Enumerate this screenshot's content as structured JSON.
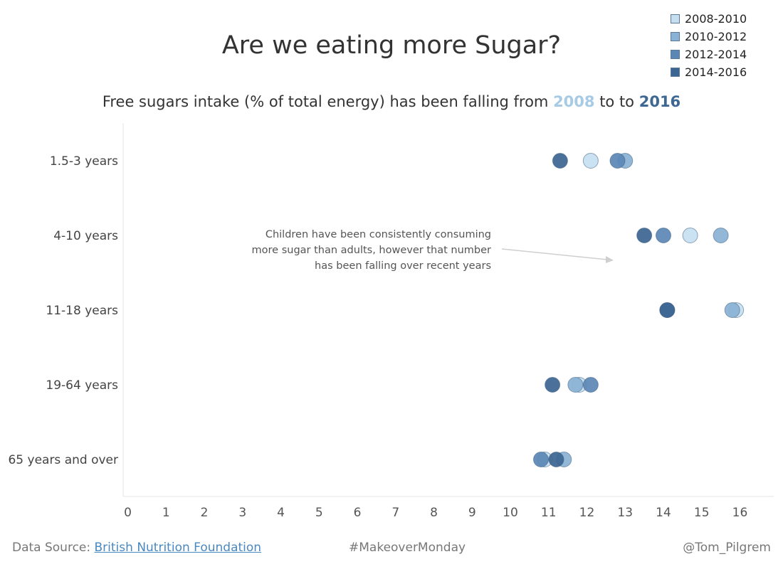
{
  "chart_data": {
    "type": "scatter",
    "title": "Are we eating more Sugar?",
    "subtitle": {
      "prefix": "Free sugars intake (% of total energy) has been falling from ",
      "start_year": "2008",
      "middle": " to to ",
      "end_year": "2016"
    },
    "categories": [
      "1.5-3 years",
      "4-10 years",
      "11-18 years",
      "19-64 years",
      "65 years and over"
    ],
    "xlim": [
      0,
      16.8
    ],
    "x_ticks": [
      "0",
      "1",
      "2",
      "3",
      "4",
      "5",
      "6",
      "7",
      "8",
      "9",
      "10",
      "11",
      "12",
      "13",
      "14",
      "15",
      "16"
    ],
    "grid": false,
    "legend_position": "top-right",
    "series": [
      {
        "name": "2008-2010",
        "color": "#c5dff0",
        "values": [
          12.1,
          14.7,
          15.9,
          11.8,
          10.9
        ]
      },
      {
        "name": "2010-2012",
        "color": "#8ab2d4",
        "values": [
          13.0,
          15.5,
          15.8,
          11.7,
          11.4
        ]
      },
      {
        "name": "2012-2014",
        "color": "#5b87b5",
        "values": [
          12.8,
          14.0,
          14.1,
          12.1,
          10.8
        ]
      },
      {
        "name": "2014-2016",
        "color": "#3c6591",
        "values": [
          11.3,
          13.5,
          14.1,
          11.1,
          11.2
        ]
      }
    ],
    "annotation": {
      "lines": [
        "Children have been consistently consuming",
        "more sugar than adults, however that number",
        "has been falling over recent years"
      ]
    }
  },
  "footer": {
    "source_prefix": "Data Source: ",
    "source_link": "British Nutrition Foundation",
    "hashtag": "#MakeoverMonday",
    "author": "@Tom_Pilgrem"
  }
}
